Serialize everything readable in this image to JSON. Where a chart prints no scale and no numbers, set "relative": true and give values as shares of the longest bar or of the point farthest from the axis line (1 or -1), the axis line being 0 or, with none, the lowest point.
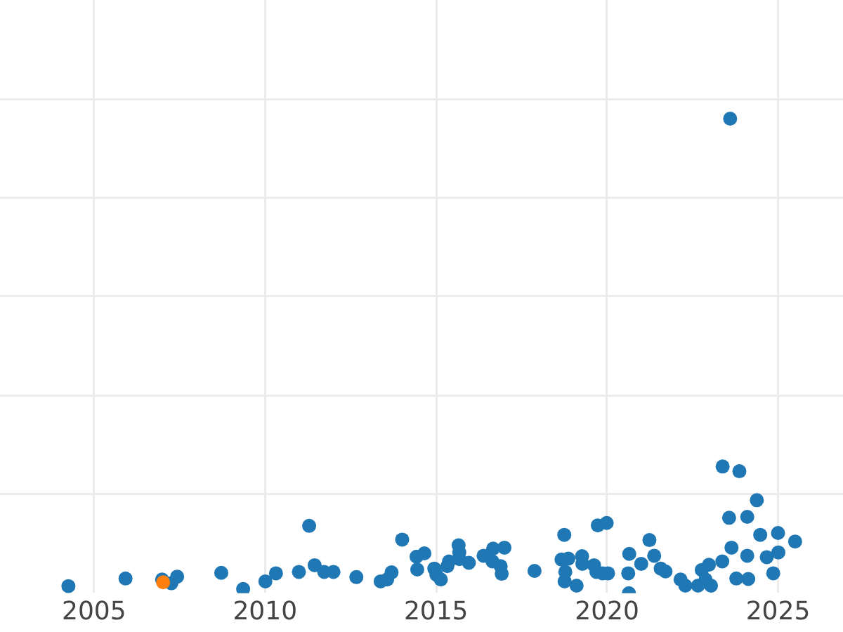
{
  "chart_data": {
    "type": "scatter",
    "relative": true,
    "marker": "circle",
    "grid": true,
    "xlim": [
      2002.25,
      2026.9
    ],
    "xticks": [
      2005,
      2010,
      2015,
      2020,
      2025
    ],
    "series": [
      {
        "color": "#1f77b4",
        "x": [
          2004.25,
          2005.92,
          2006.99,
          2007.26,
          2007.43,
          2008.72,
          2009.36,
          2010.01,
          2010.32,
          2010.99,
          2011.29,
          2011.45,
          2011.73,
          2012.0,
          2012.67,
          2013.38,
          2013.57,
          2013.7,
          2014.01,
          2014.43,
          2014.45,
          2014.66,
          2014.95,
          2015.01,
          2015.14,
          2015.33,
          2015.38,
          2015.66,
          2015.68,
          2015.68,
          2015.96,
          2016.39,
          2016.65,
          2016.67,
          2016.89,
          2016.92,
          2017.0,
          2017.88,
          2018.67,
          2018.75,
          2018.76,
          2018.78,
          2018.87,
          2019.11,
          2019.27,
          2019.28,
          2019.62,
          2019.69,
          2019.73,
          2019.87,
          2019.99,
          2020.03,
          2020.62,
          2020.64,
          2020.65,
          2021.0,
          2021.24,
          2021.38,
          2021.57,
          2021.71,
          2022.15,
          2022.29,
          2022.66,
          2022.77,
          2022.88,
          2022.98,
          2023.04,
          2023.37,
          2023.38,
          2023.57,
          2023.6,
          2023.64,
          2023.78,
          2023.87,
          2024.1,
          2024.1,
          2024.13,
          2024.38,
          2024.48,
          2024.67,
          2024.86,
          2025.0,
          2025.01,
          2025.5
        ],
        "values": [
          0.015,
          0.031,
          0.029,
          0.021,
          0.035,
          0.043,
          0.009,
          0.025,
          0.042,
          0.045,
          0.142,
          0.059,
          0.045,
          0.045,
          0.034,
          0.025,
          0.029,
          0.044,
          0.113,
          0.077,
          0.05,
          0.084,
          0.052,
          0.039,
          0.029,
          0.057,
          0.067,
          0.101,
          0.086,
          0.072,
          0.064,
          0.079,
          0.067,
          0.094,
          0.057,
          0.041,
          0.096,
          0.047,
          0.071,
          0.123,
          0.025,
          0.045,
          0.073,
          0.016,
          0.078,
          0.062,
          0.059,
          0.045,
          0.143,
          0.042,
          0.148,
          0.042,
          0.042,
          0,
          0.083,
          0.062,
          0.112,
          0.079,
          0.052,
          0.046,
          0.029,
          0.016,
          0.016,
          0.049,
          0.029,
          0.06,
          0.016,
          0.067,
          0.267,
          0.159,
          1,
          0.096,
          0.031,
          0.257,
          0.161,
          0.079,
          0.03,
          0.196,
          0.123,
          0.076,
          0.042,
          0.127,
          0.086,
          0.109
        ]
      },
      {
        "color": "#ff7f0e",
        "x": [
          2007.02
        ],
        "values": [
          0.023
        ]
      }
    ]
  }
}
